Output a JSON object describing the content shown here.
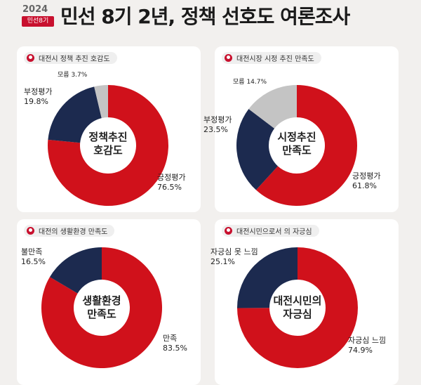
{
  "header": {
    "year": "2024",
    "badge": "민선8기",
    "title": "민선 8기 2년, 정책 선호도 여론조사"
  },
  "colors": {
    "red": "#d0111b",
    "navy": "#1c2a4f",
    "gray": "#c4c4c4"
  },
  "chart_data": [
    {
      "type": "pie",
      "title": "대전시 정책 추진 호감도",
      "center_label": [
        "정책추진",
        "호감도"
      ],
      "slices": [
        {
          "label": "긍정평가",
          "value": 76.5,
          "pct": "76.5%"
        },
        {
          "label": "부정평가",
          "value": 19.8,
          "pct": "19.8%"
        },
        {
          "label": "모름",
          "value": 3.7,
          "pct": "3.7%"
        }
      ]
    },
    {
      "type": "pie",
      "title": "대전시장 시정 추진 만족도",
      "center_label": [
        "시정추진",
        "만족도"
      ],
      "slices": [
        {
          "label": "긍정평가",
          "value": 61.8,
          "pct": "61.8%"
        },
        {
          "label": "부정평가",
          "value": 23.5,
          "pct": "23.5%"
        },
        {
          "label": "모름",
          "value": 14.7,
          "pct": "14.7%"
        }
      ]
    },
    {
      "type": "pie",
      "title": "대전의 생활환경 만족도",
      "center_label": [
        "생활환경",
        "만족도"
      ],
      "slices": [
        {
          "label": "만족",
          "value": 83.5,
          "pct": "83.5%"
        },
        {
          "label": "불만족",
          "value": 16.5,
          "pct": "16.5%"
        }
      ]
    },
    {
      "type": "pie",
      "title": "대전시민으로서 의 자긍심",
      "center_label": [
        "대전시민의",
        "자긍심"
      ],
      "slices": [
        {
          "label": "자긍심 느낌",
          "value": 74.9,
          "pct": "74.9%"
        },
        {
          "label": "자긍심 못 느낌",
          "value": 25.1,
          "pct": "25.1%"
        }
      ]
    }
  ]
}
